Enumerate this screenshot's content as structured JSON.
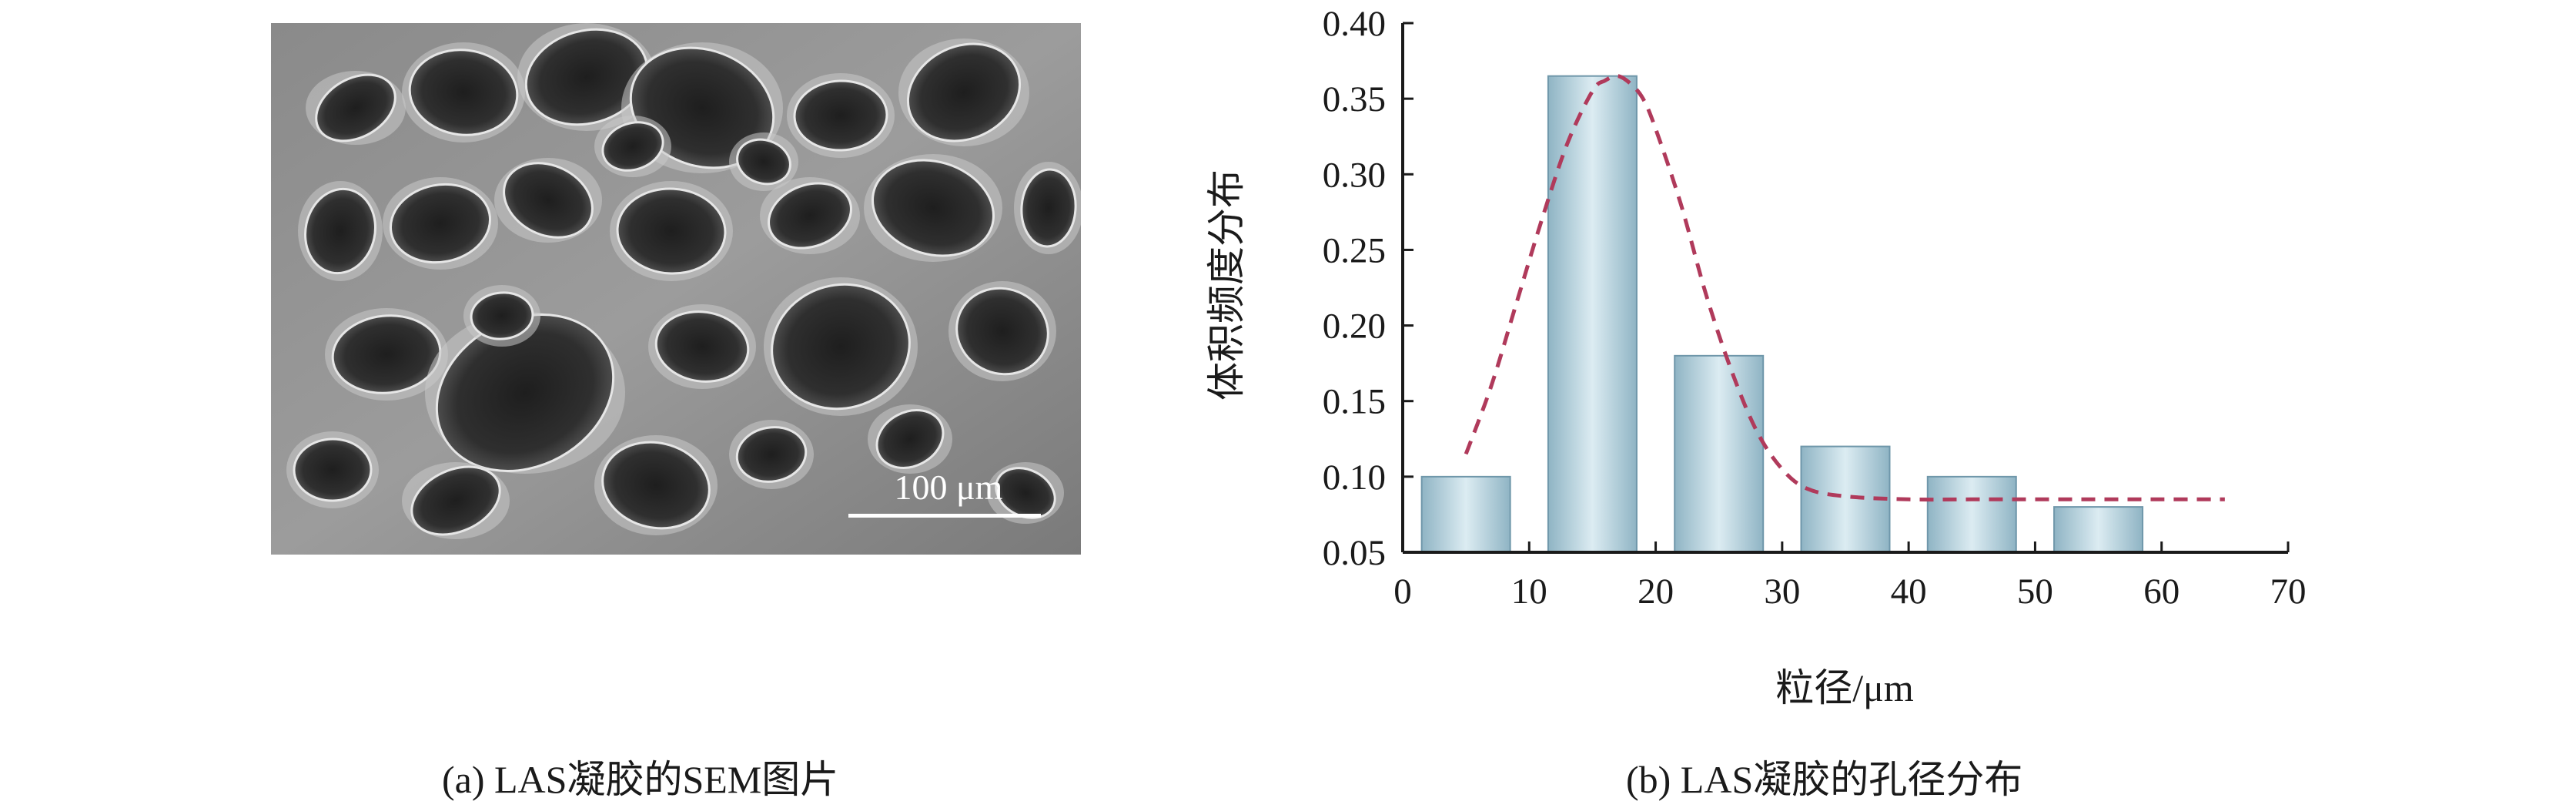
{
  "panels": {
    "a": {
      "caption": "(a) LAS凝胶的SEM图片",
      "scale_bar_label": "100 μm"
    },
    "b": {
      "caption": "(b) LAS凝胶的孔径分布"
    }
  },
  "chart_data": {
    "type": "bar",
    "title": "",
    "xlabel": "粒径/μm",
    "ylabel": "体积频度分布",
    "xlim": [
      0,
      70
    ],
    "ylim": [
      0.05,
      0.4
    ],
    "xticks": [
      0,
      10,
      20,
      30,
      40,
      50,
      60,
      70
    ],
    "yticks": [
      0.05,
      0.1,
      0.15,
      0.2,
      0.25,
      0.3,
      0.35,
      0.4
    ],
    "x_tick_labels": [
      "0",
      "10",
      "20",
      "30",
      "40",
      "50",
      "60",
      "70"
    ],
    "y_tick_labels": [
      "0.05",
      "0.10",
      "0.15",
      "0.20",
      "0.25",
      "0.30",
      "0.35",
      "0.40"
    ],
    "bars": [
      {
        "x_start": 1.5,
        "x_end": 8.5,
        "value": 0.1
      },
      {
        "x_start": 11.5,
        "x_end": 18.5,
        "value": 0.365
      },
      {
        "x_start": 21.5,
        "x_end": 28.5,
        "value": 0.18
      },
      {
        "x_start": 31.5,
        "x_end": 38.5,
        "value": 0.12
      },
      {
        "x_start": 41.5,
        "x_end": 48.5,
        "value": 0.1
      },
      {
        "x_start": 51.5,
        "x_end": 58.5,
        "value": 0.08
      }
    ],
    "fit_curve": {
      "style": "dashed",
      "color": "#b03a5b",
      "x": [
        5,
        7,
        9,
        11,
        13,
        15,
        16,
        17,
        18,
        19,
        20,
        22,
        24,
        26,
        28,
        30,
        32,
        35,
        40,
        45,
        50,
        55,
        60,
        65
      ],
      "y": [
        0.115,
        0.16,
        0.215,
        0.27,
        0.32,
        0.355,
        0.362,
        0.365,
        0.36,
        0.35,
        0.33,
        0.28,
        0.22,
        0.17,
        0.13,
        0.105,
        0.092,
        0.087,
        0.085,
        0.085,
        0.085,
        0.085,
        0.085,
        0.085
      ]
    },
    "bar_colors": {
      "edge": "#8fb4c4",
      "center": "#dcecf2",
      "outline": "#6f97aa"
    },
    "grid": false,
    "legend": "none"
  }
}
